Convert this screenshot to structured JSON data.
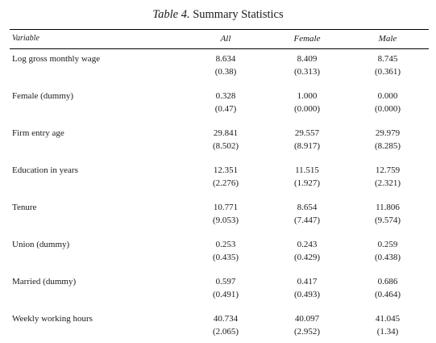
{
  "caption": {
    "label": "Table 4.",
    "title": "Summary Statistics"
  },
  "header": {
    "variable": "Variable",
    "all": "All",
    "female": "Female",
    "male": "Male"
  },
  "rows": [
    {
      "label": "Log gross monthly wage",
      "all": "8.634",
      "all_sd": "(0.38)",
      "female": "8.409",
      "female_sd": "(0.313)",
      "male": "8.745",
      "male_sd": "(0.361)"
    },
    {
      "label": "Female (dummy)",
      "all": "0.328",
      "all_sd": "(0.47)",
      "female": "1.000",
      "female_sd": "(0.000)",
      "male": "0.000",
      "male_sd": "(0.000)"
    },
    {
      "label": "Firm entry age",
      "all": "29.841",
      "all_sd": "(8.502)",
      "female": "29.557",
      "female_sd": "(8.917)",
      "male": "29.979",
      "male_sd": "(8.285)"
    },
    {
      "label": "Education in years",
      "all": "12.351",
      "all_sd": "(2.276)",
      "female": "11.515",
      "female_sd": "(1.927)",
      "male": "12.759",
      "male_sd": "(2.321)"
    },
    {
      "label": "Tenure",
      "all": "10.771",
      "all_sd": "(9.053)",
      "female": "8.654",
      "female_sd": "(7.447)",
      "male": "11.806",
      "male_sd": "(9.574)"
    },
    {
      "label": "Union (dummy)",
      "all": "0.253",
      "all_sd": "(0.435)",
      "female": "0.243",
      "female_sd": "(0.429)",
      "male": "0.259",
      "male_sd": "(0.438)"
    },
    {
      "label": "Married (dummy)",
      "all": "0.597",
      "all_sd": "(0.491)",
      "female": "0.417",
      "female_sd": "(0.493)",
      "male": "0.686",
      "male_sd": "(0.464)"
    },
    {
      "label": "Weekly working hours",
      "all": "40.734",
      "all_sd": "(2.065)",
      "female": "40.097",
      "female_sd": "(2.952)",
      "male": "41.045",
      "male_sd": "(1.34)"
    }
  ]
}
